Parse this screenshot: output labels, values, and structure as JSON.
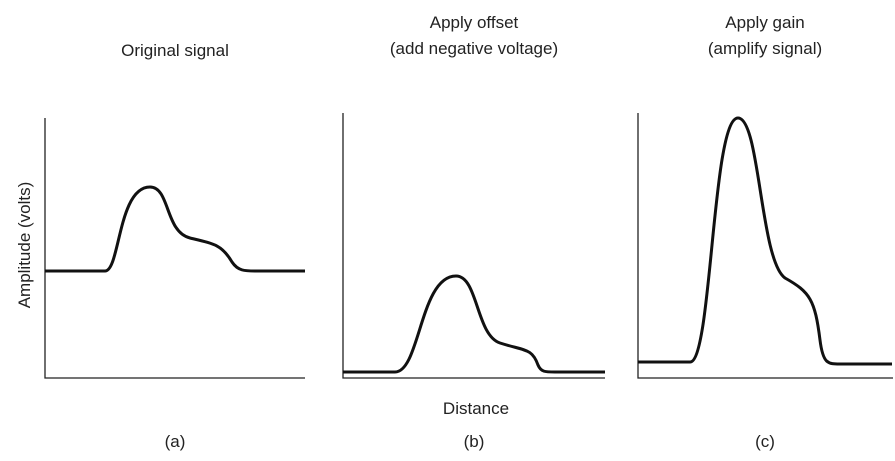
{
  "panels": [
    {
      "title": [
        "Original signal"
      ],
      "caption": "(a)"
    },
    {
      "title": [
        "Apply offset",
        "(add negative voltage)"
      ],
      "caption": "(b)"
    },
    {
      "title": [
        "Apply gain",
        "(amplify signal)"
      ],
      "caption": "(c)"
    }
  ],
  "y_axis_label": "Amplitude (volts)",
  "x_axis_label": "Distance"
}
